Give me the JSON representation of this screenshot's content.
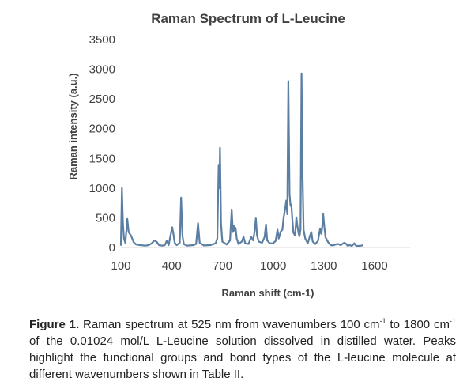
{
  "chart_data": {
    "type": "line",
    "title": "Raman Spectrum of L-Leucine",
    "xlabel": "Raman shift (cm-1)",
    "ylabel": "Raman intensity (a.u.)",
    "xlim": [
      100,
      1810
    ],
    "ylim": [
      0,
      3500
    ],
    "x_ticks": [
      100,
      400,
      700,
      1000,
      1300,
      1600
    ],
    "y_ticks": [
      0,
      500,
      1000,
      1500,
      2000,
      2500,
      3000,
      3500
    ],
    "grid": false,
    "legend": "none",
    "line_color": "#5b7ea3",
    "series": [
      {
        "points": [
          [
            100,
            30
          ],
          [
            106,
            1000
          ],
          [
            112,
            400
          ],
          [
            118,
            150
          ],
          [
            126,
            80
          ],
          [
            133,
            300
          ],
          [
            138,
            480
          ],
          [
            146,
            260
          ],
          [
            160,
            200
          ],
          [
            175,
            90
          ],
          [
            190,
            50
          ],
          [
            215,
            40
          ],
          [
            245,
            30
          ],
          [
            265,
            40
          ],
          [
            282,
            70
          ],
          [
            298,
            120
          ],
          [
            312,
            95
          ],
          [
            325,
            40
          ],
          [
            345,
            30
          ],
          [
            360,
            40
          ],
          [
            372,
            120
          ],
          [
            382,
            40
          ],
          [
            395,
            220
          ],
          [
            403,
            340
          ],
          [
            410,
            230
          ],
          [
            418,
            80
          ],
          [
            430,
            40
          ],
          [
            448,
            80
          ],
          [
            456,
            840
          ],
          [
            464,
            200
          ],
          [
            472,
            60
          ],
          [
            490,
            30
          ],
          [
            530,
            40
          ],
          [
            545,
            60
          ],
          [
            556,
            410
          ],
          [
            566,
            80
          ],
          [
            590,
            35
          ],
          [
            630,
            40
          ],
          [
            660,
            70
          ],
          [
            670,
            150
          ],
          [
            678,
            1380
          ],
          [
            683,
            1000
          ],
          [
            686,
            1680
          ],
          [
            692,
            400
          ],
          [
            700,
            100
          ],
          [
            725,
            50
          ],
          [
            745,
            120
          ],
          [
            755,
            640
          ],
          [
            762,
            260
          ],
          [
            768,
            360
          ],
          [
            774,
            280
          ],
          [
            778,
            330
          ],
          [
            785,
            150
          ],
          [
            795,
            60
          ],
          [
            815,
            100
          ],
          [
            825,
            180
          ],
          [
            835,
            70
          ],
          [
            855,
            60
          ],
          [
            870,
            180
          ],
          [
            882,
            120
          ],
          [
            890,
            260
          ],
          [
            898,
            490
          ],
          [
            905,
            200
          ],
          [
            915,
            100
          ],
          [
            935,
            80
          ],
          [
            950,
            180
          ],
          [
            958,
            390
          ],
          [
            965,
            120
          ],
          [
            980,
            70
          ],
          [
            1000,
            70
          ],
          [
            1015,
            110
          ],
          [
            1026,
            300
          ],
          [
            1033,
            150
          ],
          [
            1045,
            270
          ],
          [
            1055,
            300
          ],
          [
            1062,
            500
          ],
          [
            1070,
            630
          ],
          [
            1078,
            790
          ],
          [
            1084,
            560
          ],
          [
            1090,
            2800
          ],
          [
            1097,
            900
          ],
          [
            1103,
            700
          ],
          [
            1108,
            720
          ],
          [
            1113,
            500
          ],
          [
            1120,
            250
          ],
          [
            1130,
            200
          ],
          [
            1137,
            510
          ],
          [
            1144,
            350
          ],
          [
            1151,
            230
          ],
          [
            1156,
            190
          ],
          [
            1162,
            300
          ],
          [
            1168,
            2930
          ],
          [
            1174,
            1200
          ],
          [
            1180,
            300
          ],
          [
            1190,
            150
          ],
          [
            1205,
            70
          ],
          [
            1218,
            200
          ],
          [
            1226,
            260
          ],
          [
            1234,
            100
          ],
          [
            1250,
            60
          ],
          [
            1265,
            110
          ],
          [
            1278,
            320
          ],
          [
            1285,
            230
          ],
          [
            1290,
            330
          ],
          [
            1296,
            560
          ],
          [
            1303,
            340
          ],
          [
            1310,
            170
          ],
          [
            1325,
            90
          ],
          [
            1340,
            40
          ],
          [
            1355,
            35
          ],
          [
            1370,
            50
          ],
          [
            1383,
            60
          ],
          [
            1400,
            40
          ],
          [
            1420,
            80
          ],
          [
            1433,
            60
          ],
          [
            1440,
            30
          ],
          [
            1455,
            40
          ],
          [
            1465,
            25
          ],
          [
            1480,
            70
          ],
          [
            1490,
            30
          ],
          [
            1500,
            25
          ],
          [
            1520,
            30
          ],
          [
            1534,
            40
          ]
        ]
      }
    ]
  },
  "caption": {
    "label": "Figure 1.",
    "text_1": " Raman spectrum at 525 nm from wavenumbers 100 cm",
    "sup_1": "-1",
    "text_2": " to 1800 cm",
    "sup_2": "-1",
    "text_3": " of the 0.01024 mol/L L-Leucine solution dissolved in distilled water. Peaks highlight the functional groups and bond types of the L-leucine molecule at different wavenumbers shown in Table II."
  }
}
